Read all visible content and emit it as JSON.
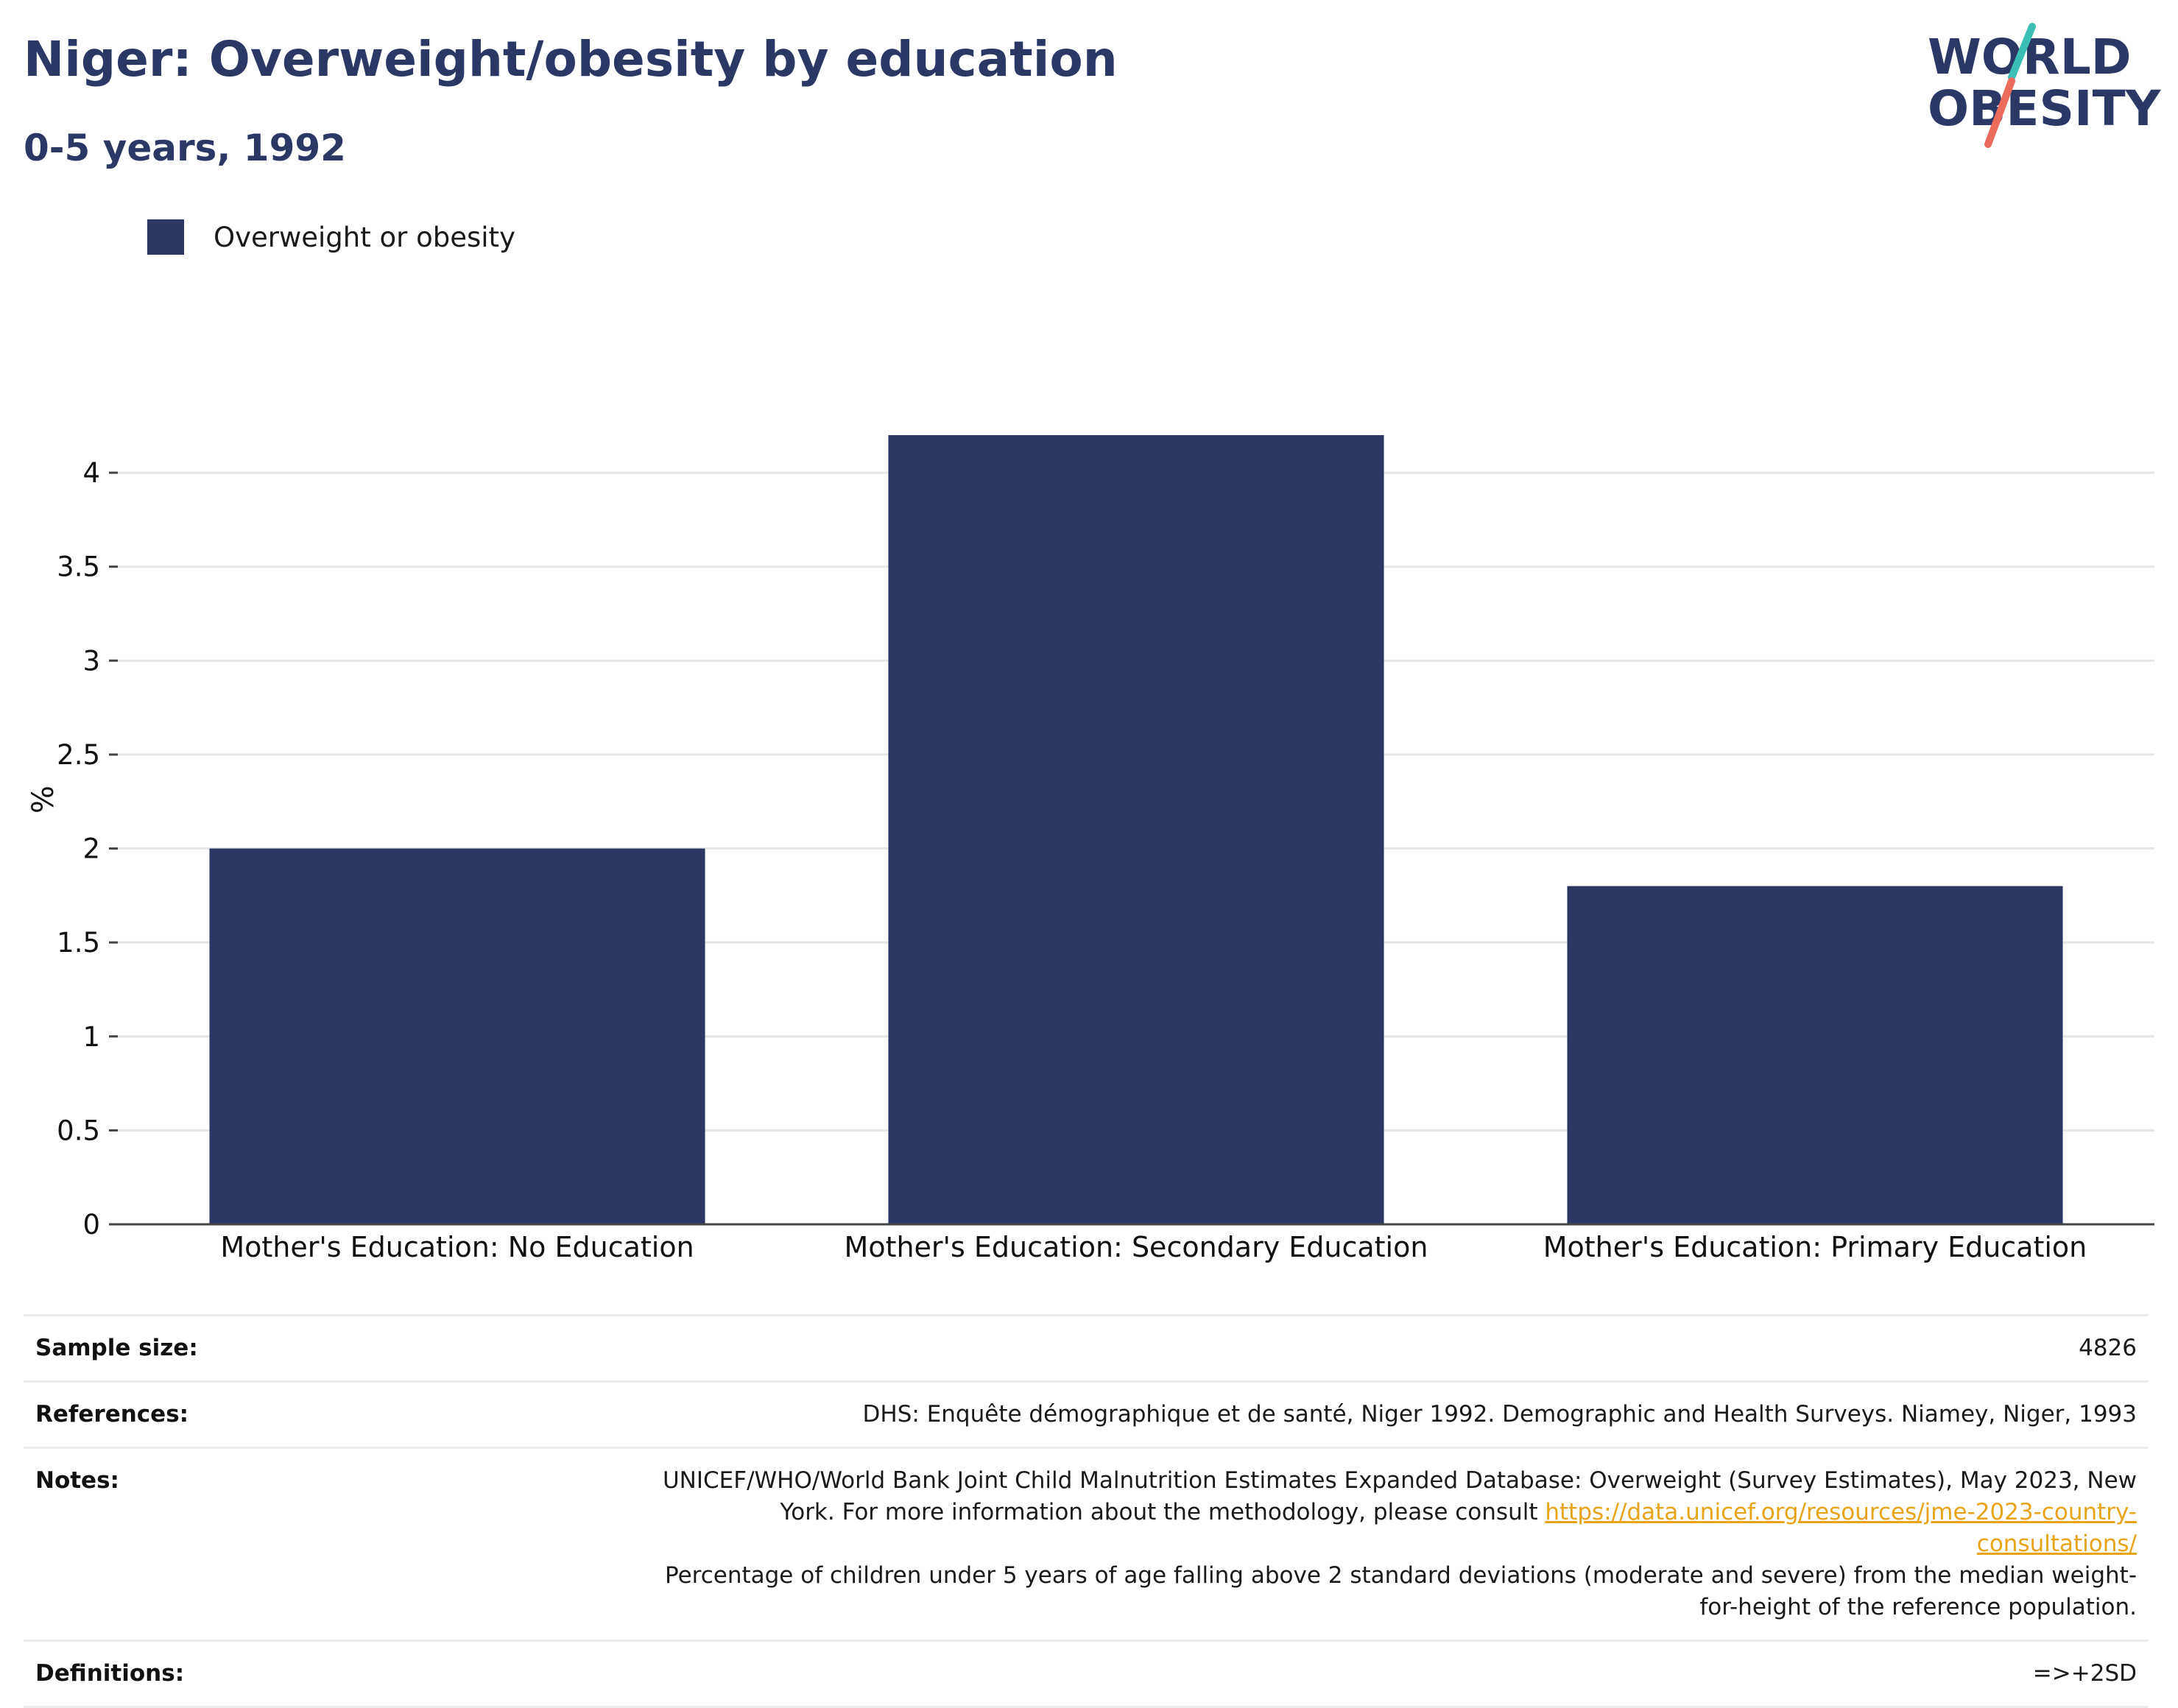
{
  "header": {
    "title": "Niger: Overweight/obesity by education",
    "subtitle": "0-5 years, 1992"
  },
  "logo": {
    "line1": "WORLD",
    "line2": "OBESITY"
  },
  "colors": {
    "bar": "#2b3662",
    "title": "#2b3866",
    "logo_text": "#2b3866",
    "logo_accent_teal": "#3bbfb5",
    "logo_accent_coral": "#ec6b5a",
    "link": "#e8a317"
  },
  "chart_data": {
    "type": "bar",
    "categories": [
      "Mother's Education: No Education",
      "Mother's Education: Secondary Education",
      "Mother's Education: Primary Education"
    ],
    "series": [
      {
        "name": "Overweight or obesity",
        "values": [
          2.0,
          4.2,
          1.8
        ]
      }
    ],
    "ylabel": "%",
    "xlabel": "",
    "ylim": [
      0,
      4.4
    ],
    "yticks": [
      0,
      0.5,
      1,
      1.5,
      2,
      2.5,
      3,
      3.5,
      4
    ],
    "ytick_labels": [
      "0",
      "0.5",
      "1",
      "1.5",
      "2",
      "2.5",
      "3",
      "3.5",
      "4"
    ],
    "grid": true,
    "legend_position": "top-left"
  },
  "info": {
    "sample_size_label": "Sample size:",
    "sample_size_value": "4826",
    "references_label": "References:",
    "references_value": "DHS: Enquête démographique et de santé, Niger 1992. Demographic and Health Surveys. Niamey, Niger, 1993",
    "notes_label": "Notes:",
    "notes_text_1": "UNICEF/WHO/World Bank Joint Child Malnutrition Estimates Expanded Database: Overweight (Survey Estimates), May 2023, New York. For more information about the methodology, please consult ",
    "notes_link": "https://data.unicef.org/resources/jme-2023-country-consultations/",
    "notes_text_2": "Percentage of children under 5 years of age falling above 2 standard deviations (moderate and severe) from the median weight-for-height of the reference population.",
    "definitions_label": "Definitions:",
    "definitions_value": "=>+2SD"
  }
}
